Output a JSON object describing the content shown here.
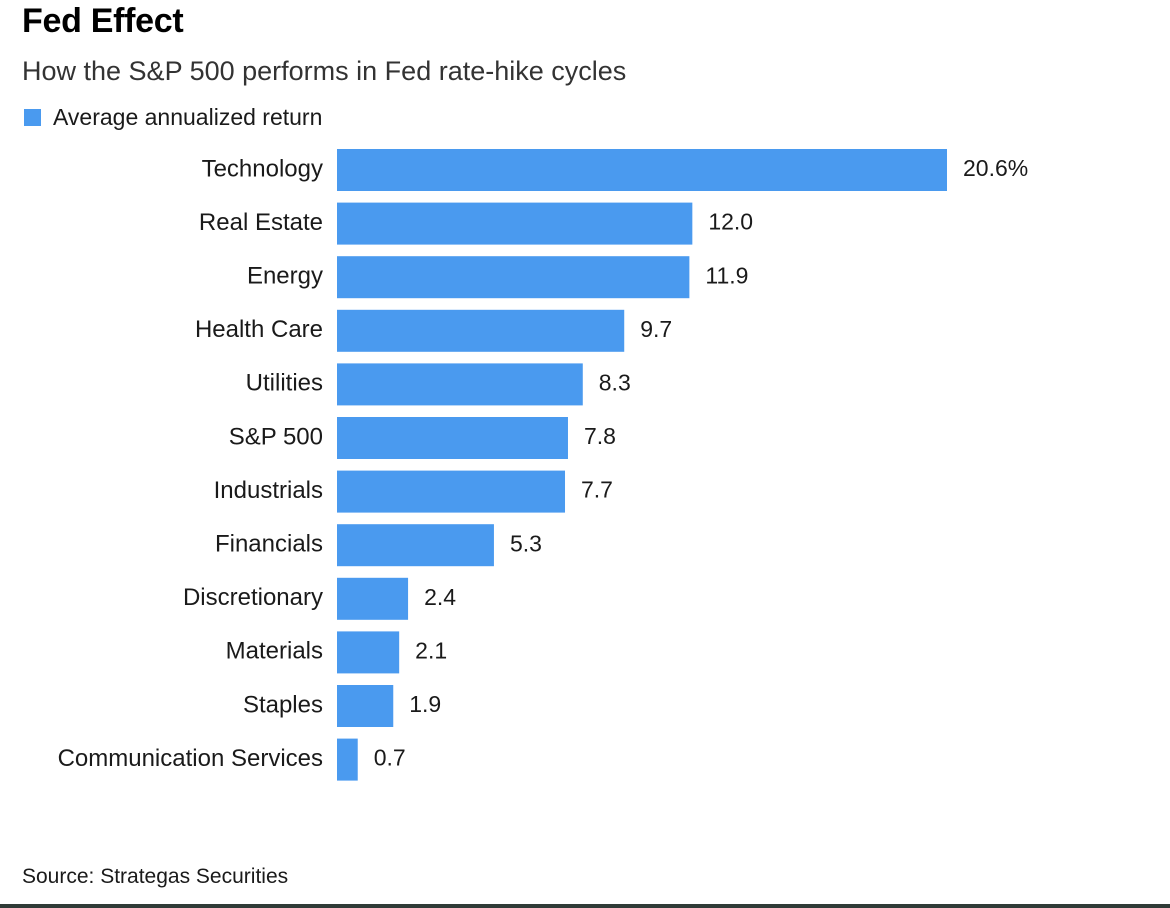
{
  "header": {
    "title": "Fed Effect",
    "subtitle": "How the S&P 500 performs in Fed rate-hike cycles"
  },
  "legend": {
    "label": "Average annualized return",
    "color": "#4a9aef"
  },
  "source": "Source: Strategas Securities",
  "colors": {
    "bar": "#4a9aef",
    "border": "#2f3b37"
  },
  "chart_data": {
    "type": "bar",
    "orientation": "horizontal",
    "categories": [
      "Technology",
      "Real Estate",
      "Energy",
      "Health Care",
      "Utilities",
      "S&P 500",
      "Industrials",
      "Financials",
      "Discretionary",
      "Materials",
      "Staples",
      "Communication Services"
    ],
    "series": [
      {
        "name": "Average annualized return",
        "values": [
          20.6,
          12.0,
          11.9,
          9.7,
          8.3,
          7.8,
          7.7,
          5.3,
          2.4,
          2.1,
          1.9,
          0.7
        ]
      }
    ],
    "data_labels": [
      "20.6%",
      "12.0",
      "11.9",
      "9.7",
      "8.3",
      "7.8",
      "7.7",
      "5.3",
      "2.4",
      "2.1",
      "1.9",
      "0.7"
    ],
    "title": "Fed Effect",
    "subtitle": "How the S&P 500 performs in Fed rate-hike cycles",
    "xlim": [
      0,
      20.6
    ],
    "grid": false,
    "legend_position": "top-left"
  }
}
